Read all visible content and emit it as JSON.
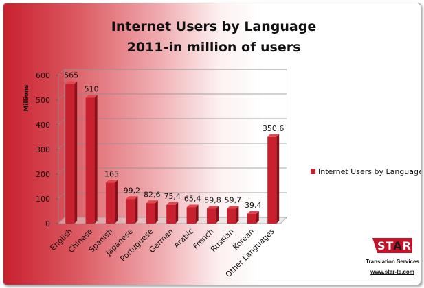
{
  "chart_data": {
    "type": "bar",
    "title_lines": [
      "Internet Users by Language",
      "2011-in million of users"
    ],
    "ylabel": "Millions",
    "xlabel": "",
    "ylim": [
      0,
      600
    ],
    "yticks": [
      "0",
      "100",
      "200",
      "300",
      "400",
      "500",
      "600"
    ],
    "categories": [
      "English",
      "Chinese",
      "Spanish",
      "Japanese",
      "Portuguese",
      "German",
      "Arabic",
      "French",
      "Russian",
      "Korean",
      "Other Languages"
    ],
    "series": [
      {
        "name": "Internet Users by Language",
        "values": [
          565,
          510,
          165,
          99.2,
          82.6,
          75.4,
          65.4,
          59.8,
          59.7,
          39.4,
          350.6
        ],
        "labels": [
          "565",
          "510",
          "165",
          "99,2",
          "82,6",
          "75,4",
          "65,4",
          "59,8",
          "59,7",
          "39,4",
          "350,6"
        ]
      }
    ],
    "legend_position": "right",
    "grid": true,
    "colors": {
      "bar": "#c8202e",
      "bar_side": "#8a0f18",
      "bar_top": "#e0474f"
    }
  },
  "logo": {
    "word_pre": "ST",
    "word_accent": "A",
    "word_post": "R",
    "subtitle": "Translation Services",
    "url": "www.star-ts.com"
  }
}
